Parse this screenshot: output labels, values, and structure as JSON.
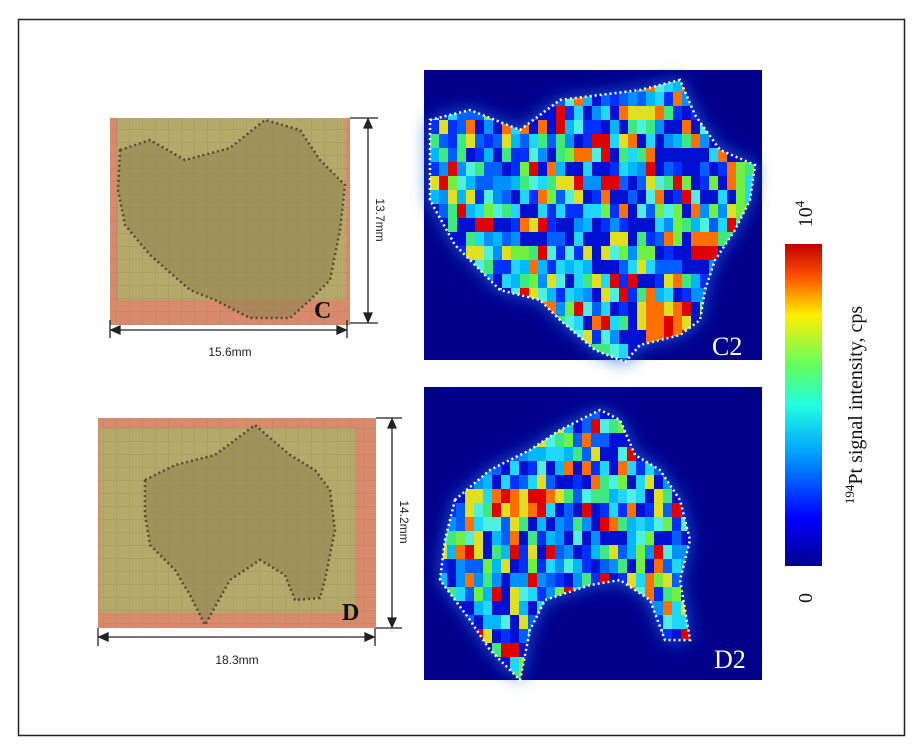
{
  "panels": [
    {
      "label": "C",
      "height_label": "13.7mm",
      "width_label": "15.6mm"
    },
    {
      "label": "C2"
    },
    {
      "label": "D",
      "height_label": "14.2mm",
      "width_label": "18.3mm"
    },
    {
      "label": "D2"
    }
  ],
  "colorbar": {
    "max_label": {
      "base": "10",
      "exponent": "4"
    },
    "min_label": "0",
    "title": {
      "isotope": "194",
      "text": "Pt signal intensity, cps"
    }
  }
}
